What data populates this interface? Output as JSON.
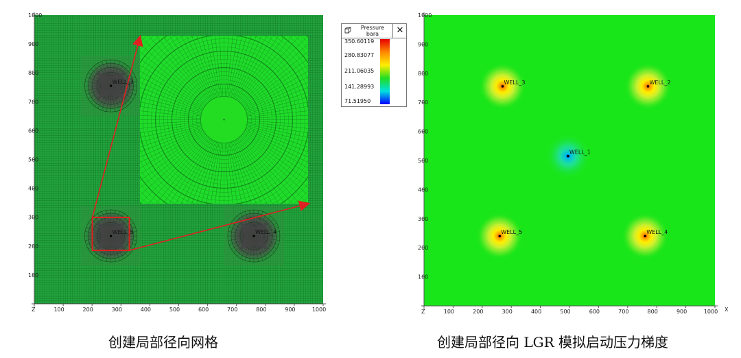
{
  "chart_data": [
    {
      "type": "heatmap",
      "description_type": "grid",
      "xlim": [
        0,
        1000
      ],
      "ylim": [
        0,
        1000
      ],
      "x_ticks": [
        100,
        200,
        300,
        400,
        500,
        600,
        700,
        800,
        900,
        1000
      ],
      "y_ticks": [
        100,
        200,
        300,
        400,
        500,
        600,
        700,
        800,
        900,
        1000
      ],
      "axis_corner_label": "Z",
      "background_color": "#20a23c",
      "wells": [
        {
          "name": "WELL_3",
          "x": 265,
          "y": 755,
          "labeled": true
        },
        {
          "name": "WELL_5",
          "x": 265,
          "y": 235,
          "labeled": true
        },
        {
          "name": "WELL_4",
          "x": 760,
          "y": 235,
          "labeled": true
        }
      ],
      "caption": "创建局部径向网格"
    },
    {
      "type": "heatmap",
      "description_type": "pressure",
      "xlim": [
        0,
        1000
      ],
      "ylim": [
        0,
        1000
      ],
      "x_ticks": [
        100,
        200,
        300,
        400,
        500,
        600,
        700,
        800,
        900,
        1000
      ],
      "y_ticks": [
        100,
        200,
        300,
        400,
        500,
        600,
        700,
        800,
        900,
        1000
      ],
      "axis_corner_label": "Z",
      "x_axis_letter": "X",
      "background_color": "#19e619",
      "wells": [
        {
          "name": "WELL_3",
          "x": 270,
          "y": 755,
          "kind": "producer"
        },
        {
          "name": "WELL_2",
          "x": 770,
          "y": 755,
          "kind": "producer"
        },
        {
          "name": "WELL_1",
          "x": 495,
          "y": 515,
          "kind": "injector"
        },
        {
          "name": "WELL_5",
          "x": 260,
          "y": 240,
          "kind": "producer"
        },
        {
          "name": "WELL_4",
          "x": 760,
          "y": 240,
          "kind": "producer"
        }
      ],
      "caption": "创建局部径向 LGR 模拟启动压力梯度"
    }
  ],
  "legend": {
    "title_line1": "Pressure",
    "title_line2": "bara",
    "close_symbol": "✕",
    "ticks": [
      "350.60119",
      "280.83077",
      "211.06035",
      "141.28993",
      "71.51950"
    ],
    "colors": [
      "#e60000",
      "#ff8800",
      "#ffee00",
      "#22dd22",
      "#00e0e0",
      "#0000ff"
    ]
  },
  "captions": {
    "left": "创建局部径向网格",
    "right": "创建局部径向 LGR 模拟启动压力梯度"
  }
}
